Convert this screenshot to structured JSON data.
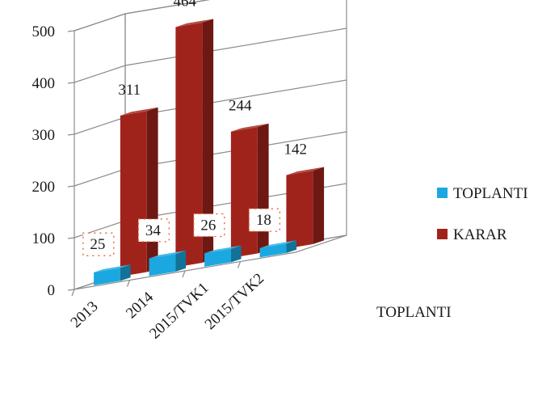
{
  "chart_data": {
    "type": "bar",
    "style": "3d-column",
    "categories": [
      "2013",
      "2014",
      "2015/TVK1",
      "2015/TVK2"
    ],
    "series": [
      {
        "name": "TOPLANTI",
        "values": [
          25,
          34,
          26,
          18
        ],
        "color": "#1ba8e0"
      },
      {
        "name": "KARAR",
        "values": [
          311,
          464,
          244,
          142
        ],
        "color": "#a0231b"
      }
    ],
    "yticks": [
      "0",
      "100",
      "200",
      "300",
      "400",
      "500"
    ],
    "ylim": [
      0,
      500
    ],
    "depth_axis_label": "TOPLANTI",
    "grid": true,
    "legend_position": "right"
  }
}
